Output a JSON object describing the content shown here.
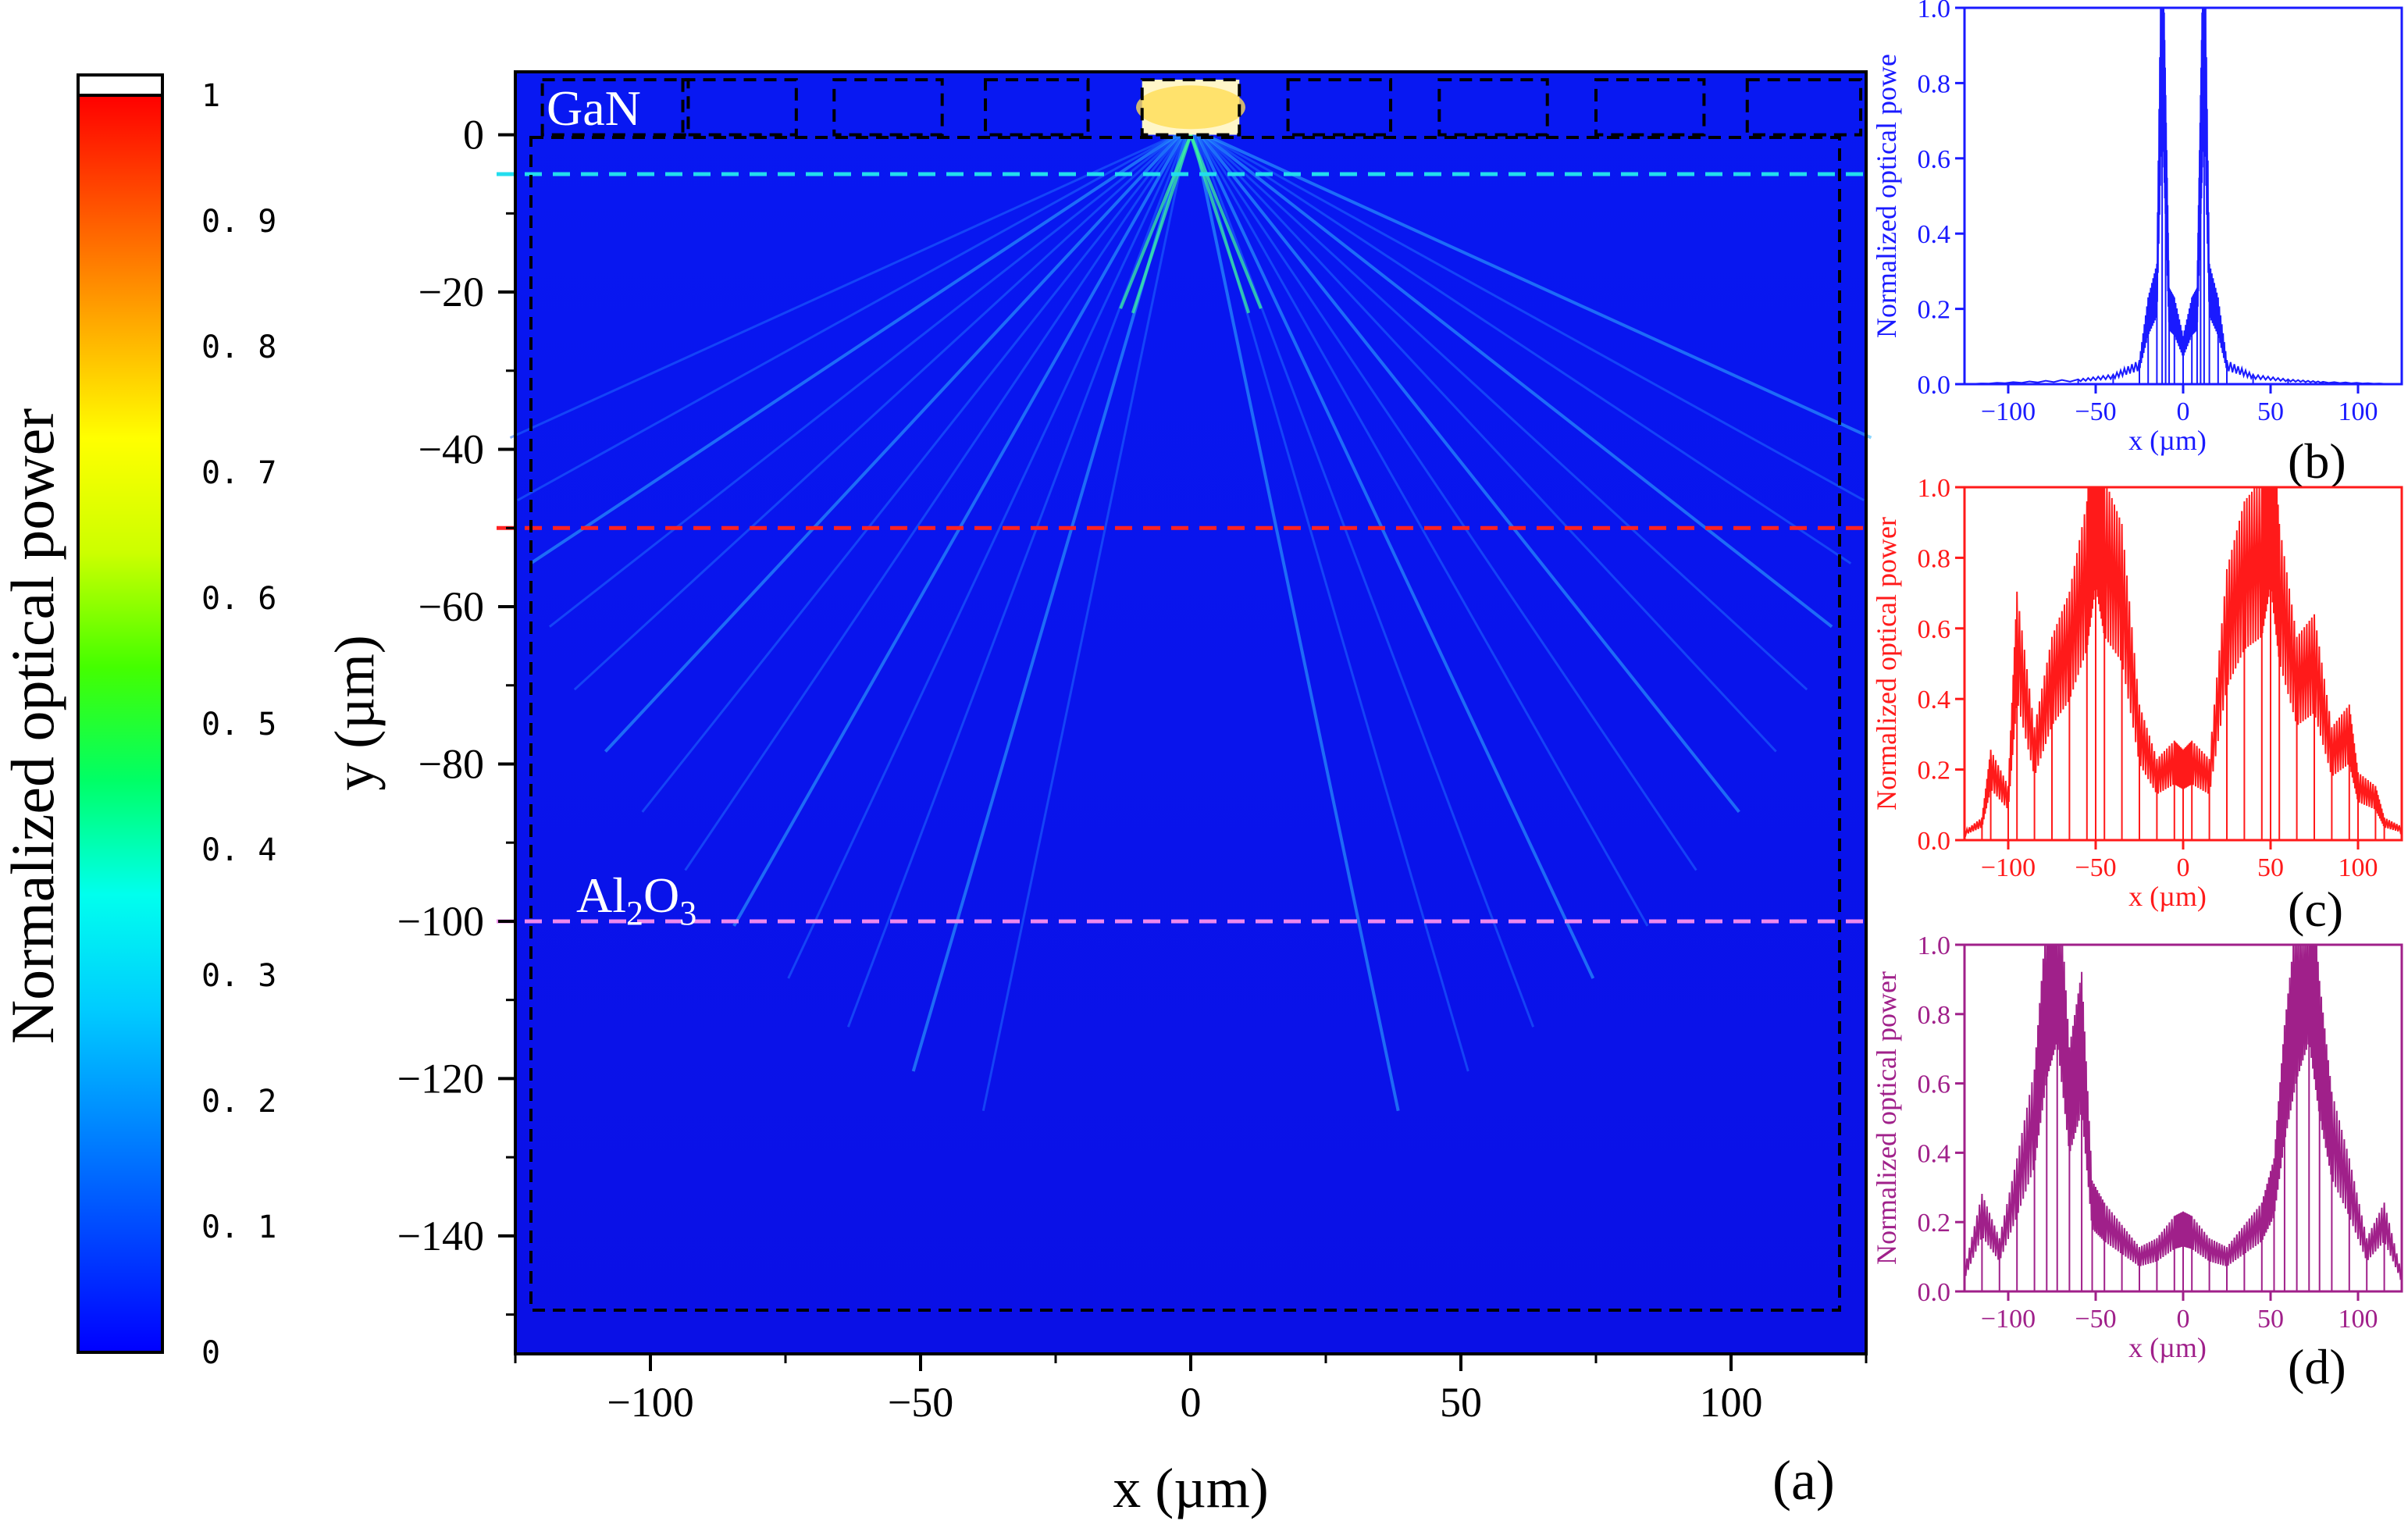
{
  "colorbar": {
    "label": "Normalized optical power",
    "ticks": [
      "1",
      "0. 9",
      "0. 8",
      "0. 7",
      "0. 6",
      "0. 5",
      "0. 4",
      "0. 3",
      "0. 2",
      "0. 1",
      "0"
    ],
    "stops": [
      "#0000ff",
      "#0044ff",
      "#0088ff",
      "#00ccff",
      "#00ffee",
      "#00ff66",
      "#44ff00",
      "#ccff00",
      "#ffff00",
      "#ffaa00",
      "#ff5500",
      "#ff0000"
    ]
  },
  "chart_data": [
    {
      "type": "heatmap",
      "panel_label": "(a)",
      "xlabel": "x (µm)",
      "ylabel": "y (µm)",
      "xlim": [
        -125,
        125
      ],
      "ylim": [
        -155,
        8
      ],
      "xticks": [
        -100,
        -50,
        0,
        50,
        100
      ],
      "yticks": [
        0,
        -20,
        -40,
        -60,
        -80,
        -100,
        -120,
        -140
      ],
      "xtick_labels": [
        "−100",
        "−50",
        "0",
        "50",
        "100"
      ],
      "ytick_labels": [
        "0",
        "−20",
        "−40",
        "−60",
        "−80",
        "−100",
        "−120",
        "−140"
      ],
      "annotations": {
        "gan": "GaN",
        "sapphire_main": "Al",
        "sapphire_sub1": "2",
        "sapphire_mid": "O",
        "sapphire_sub2": "3"
      },
      "cut_lines": [
        {
          "y": -5,
          "color": "#22ddee"
        },
        {
          "y": -50,
          "color": "#ff2222"
        },
        {
          "y": -100,
          "color": "#ee88ee"
        }
      ],
      "background_color": "#0a14f0"
    },
    {
      "type": "line",
      "panel_label": "(b)",
      "xlabel": "x (µm)",
      "ylabel": "Normalized optical powe",
      "color": "#1a1aff",
      "xlim": [
        -125,
        125
      ],
      "ylim": [
        0,
        1
      ],
      "xticks": [
        -100,
        -50,
        0,
        50,
        100
      ],
      "yticks": [
        0.0,
        0.2,
        0.4,
        0.6,
        0.8,
        1.0
      ],
      "xtick_labels": [
        "−100",
        "−50",
        "0",
        "50",
        "100"
      ],
      "ytick_labels": [
        "0.0",
        "0.2",
        "0.4",
        "0.6",
        "0.8",
        "1.0"
      ],
      "x": [
        -125,
        -60,
        -40,
        -25,
        -20,
        -15,
        -12,
        -10,
        -8,
        -5,
        0,
        5,
        8,
        10,
        12,
        15,
        20,
        25,
        40,
        60,
        80,
        125
      ],
      "y": [
        0.0,
        0.01,
        0.02,
        0.05,
        0.18,
        0.25,
        1.0,
        0.6,
        0.2,
        0.18,
        0.1,
        0.18,
        0.2,
        0.6,
        1.0,
        0.25,
        0.18,
        0.05,
        0.02,
        0.01,
        0.005,
        0.0
      ]
    },
    {
      "type": "line",
      "panel_label": "(c)",
      "xlabel": "x (µm)",
      "ylabel": "Normalized optical power",
      "color": "#ff1a1a",
      "xlim": [
        -125,
        125
      ],
      "ylim": [
        0,
        1
      ],
      "xticks": [
        -100,
        -50,
        0,
        50,
        100
      ],
      "yticks": [
        0.0,
        0.2,
        0.4,
        0.6,
        0.8,
        1.0
      ],
      "xtick_labels": [
        "−100",
        "−50",
        "0",
        "50",
        "100"
      ],
      "ytick_labels": [
        "0.0",
        "0.2",
        "0.4",
        "0.6",
        "0.8",
        "1.0"
      ],
      "x": [
        -125,
        -115,
        -110,
        -100,
        -95,
        -85,
        -75,
        -65,
        -55,
        -50,
        -45,
        -35,
        -25,
        -15,
        -5,
        0,
        5,
        15,
        25,
        35,
        45,
        50,
        55,
        65,
        75,
        85,
        95,
        100,
        110,
        115,
        125
      ],
      "y": [
        0.02,
        0.05,
        0.2,
        0.12,
        0.55,
        0.25,
        0.45,
        0.55,
        0.75,
        1.0,
        0.8,
        0.7,
        0.3,
        0.18,
        0.22,
        0.2,
        0.22,
        0.18,
        0.6,
        0.75,
        0.8,
        1.0,
        0.7,
        0.45,
        0.5,
        0.25,
        0.3,
        0.15,
        0.12,
        0.05,
        0.03
      ]
    },
    {
      "type": "line",
      "panel_label": "(d)",
      "xlabel": "x (µm)",
      "ylabel": "Normalized optical power",
      "color": "#a0208a",
      "xlim": [
        -125,
        125
      ],
      "ylim": [
        0,
        1
      ],
      "xticks": [
        -100,
        -50,
        0,
        50,
        100
      ],
      "yticks": [
        0.0,
        0.2,
        0.4,
        0.6,
        0.8,
        1.0
      ],
      "xtick_labels": [
        "−100",
        "−50",
        "0",
        "50",
        "100"
      ],
      "ytick_labels": [
        "0.0",
        "0.2",
        "0.4",
        "0.6",
        "0.8",
        "1.0"
      ],
      "x": [
        -125,
        -115,
        -105,
        -95,
        -85,
        -78,
        -72,
        -65,
        -58,
        -52,
        -45,
        -35,
        -25,
        -15,
        -5,
        0,
        5,
        15,
        25,
        35,
        45,
        52,
        58,
        65,
        72,
        78,
        85,
        95,
        105,
        115,
        125
      ],
      "y": [
        0.05,
        0.22,
        0.12,
        0.3,
        0.5,
        0.85,
        1.0,
        0.55,
        0.72,
        0.25,
        0.2,
        0.15,
        0.1,
        0.12,
        0.17,
        0.18,
        0.17,
        0.12,
        0.1,
        0.15,
        0.2,
        0.3,
        0.6,
        0.85,
        1.0,
        0.7,
        0.45,
        0.3,
        0.12,
        0.2,
        0.04
      ]
    }
  ]
}
